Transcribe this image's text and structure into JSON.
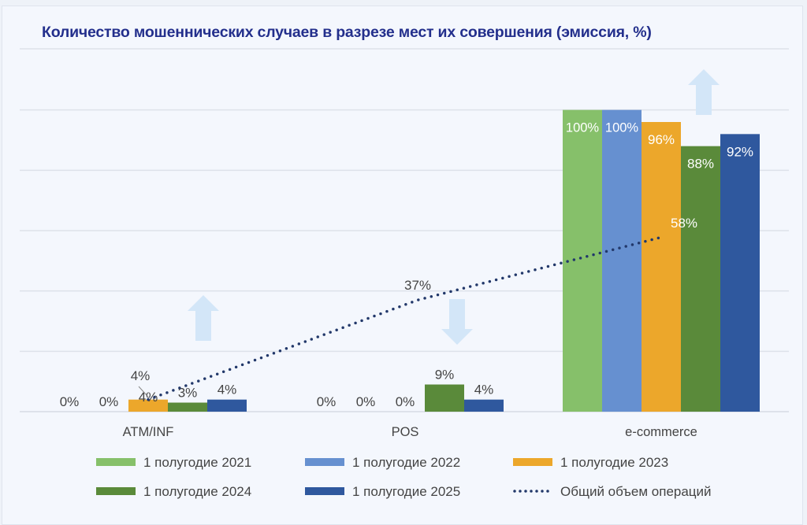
{
  "chart_data": {
    "type": "bar",
    "title": "Количество мошеннических случаев в разрезе мест их совершения (эмиссия, %)",
    "categories": [
      "ATM/INF",
      "POS",
      "e-commerce"
    ],
    "series": [
      {
        "name": "1 полугодие 2021",
        "values": [
          0,
          0,
          100
        ],
        "labels": [
          "0%",
          "0%",
          "100%"
        ],
        "color": "#86c06a"
      },
      {
        "name": "1 полугодие 2022",
        "values": [
          0,
          0,
          100
        ],
        "labels": [
          "0%",
          "0%",
          "100%"
        ],
        "color": "#6690d0"
      },
      {
        "name": "1 полугодие 2023",
        "values": [
          4,
          0,
          96
        ],
        "labels": [
          "4%",
          "0%",
          "96%"
        ],
        "color": "#eca72b"
      },
      {
        "name": "1 полугодие 2024",
        "values": [
          3,
          9,
          88
        ],
        "labels": [
          "3%",
          "9%",
          "88%"
        ],
        "color": "#5a8a3a"
      },
      {
        "name": "1 полугодие 2025",
        "values": [
          4,
          4,
          92
        ],
        "labels": [
          "4%",
          "4%",
          "92%"
        ],
        "color": "#2f589e"
      }
    ],
    "line": {
      "name": "Общий объем операций",
      "type": "dotted-line",
      "values": [
        4,
        37,
        58
      ],
      "labels": [
        "4%",
        "37%",
        "58%"
      ],
      "color": "#22386a"
    },
    "ylim": [
      0,
      120
    ],
    "grid": true,
    "legend": "bottom",
    "arrows": [
      {
        "category": "ATM/INF",
        "direction": "up",
        "icon": "arrow-up-icon"
      },
      {
        "category": "POS",
        "direction": "down",
        "icon": "arrow-down-icon"
      },
      {
        "category": "e-commerce",
        "direction": "up",
        "icon": "arrow-up-icon"
      }
    ],
    "arrow_color": "#d3e6f8",
    "title_color": "#232f8c"
  }
}
